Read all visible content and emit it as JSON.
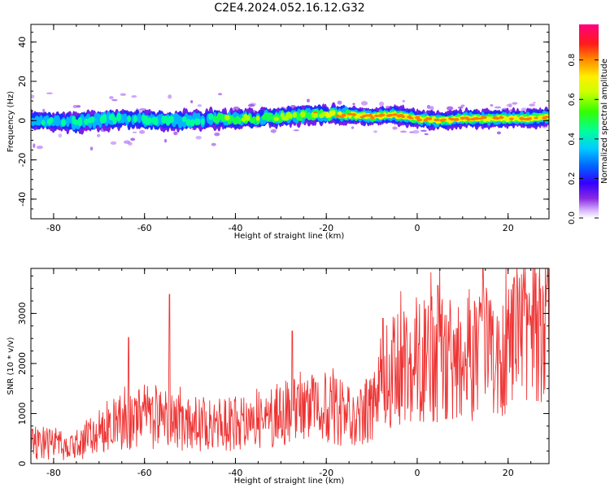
{
  "title": "C2E4.2024.052.16.12.G32",
  "colors": {
    "snr_line": "#ee3333",
    "axis": "#000000"
  },
  "chart_data": [
    {
      "type": "heatmap",
      "xlabel": "Height of straight line (km)",
      "ylabel": "Frequency (Hz)",
      "xlim": [
        -85,
        29
      ],
      "ylim": [
        -50,
        49
      ],
      "xticks": [
        -80,
        -60,
        -40,
        -20,
        0,
        20
      ],
      "xtick_labels": [
        "-80",
        "-60",
        "-40",
        "-20",
        "0",
        "20"
      ],
      "yticks": [
        -40,
        -20,
        0,
        20,
        40
      ],
      "ytick_labels": [
        "-40",
        "-20",
        "0",
        "20",
        "40"
      ],
      "colorscale": "rainbow",
      "colorbar": {
        "label": "Normalized spectral amplitude",
        "range": [
          0,
          0.98
        ],
        "ticks": [
          0.0,
          0.2,
          0.4,
          0.6,
          0.8
        ],
        "tick_labels": [
          "0.0",
          "0.2",
          "0.4",
          "0.6",
          "0.8"
        ]
      },
      "ridge": {
        "x": [
          -85,
          -80,
          -75,
          -70,
          -65,
          -60,
          -55,
          -50,
          -45,
          -40,
          -35,
          -30,
          -25,
          -20,
          -15,
          -10,
          -5,
          0,
          5,
          10,
          15,
          20,
          25,
          29
        ],
        "center_hz": [
          0,
          0,
          -1,
          0,
          1,
          0,
          0,
          0,
          1,
          1,
          1,
          2,
          3,
          3,
          3,
          2,
          3,
          1,
          0,
          1,
          1,
          1,
          1,
          2
        ],
        "peak_amplitude": [
          0.35,
          0.4,
          0.45,
          0.5,
          0.45,
          0.45,
          0.45,
          0.45,
          0.5,
          0.55,
          0.5,
          0.6,
          0.7,
          0.7,
          0.8,
          0.9,
          0.9,
          0.9,
          0.85,
          0.85,
          0.9,
          0.9,
          0.9,
          0.85
        ]
      }
    },
    {
      "type": "line",
      "xlabel": "Height of straight line (km)",
      "ylabel": "SNR (10 * v/v)",
      "xlim": [
        -85,
        29
      ],
      "ylim": [
        0,
        3900
      ],
      "xticks": [
        -80,
        -60,
        -40,
        -20,
        0,
        20
      ],
      "xtick_labels": [
        "-80",
        "-60",
        "-40",
        "-20",
        "0",
        "20"
      ],
      "yticks": [
        0,
        1000,
        2000,
        3000
      ],
      "ytick_labels": [
        "0",
        "1000",
        "2000",
        "3000"
      ],
      "trend": {
        "x": [
          -85,
          -80,
          -77,
          -75,
          -72,
          -70,
          -65,
          -60,
          -55,
          -50,
          -45,
          -40,
          -35,
          -30,
          -25,
          -20,
          -17,
          -13,
          -10,
          -7,
          -5,
          0,
          5,
          10,
          15,
          20,
          25,
          29
        ],
        "y": [
          400,
          400,
          300,
          350,
          500,
          700,
          850,
          950,
          850,
          800,
          750,
          800,
          900,
          1000,
          1050,
          1100,
          1000,
          850,
          1200,
          1750,
          1850,
          2100,
          2100,
          2100,
          2200,
          2400,
          2700,
          2800
        ]
      },
      "spikes": [
        {
          "x": -54.5,
          "y": 3380
        },
        {
          "x": -63.5,
          "y": 2520
        },
        {
          "x": 4.5,
          "y": 3560
        },
        {
          "x": 14.5,
          "y": 3900
        },
        {
          "x": 28.5,
          "y": 3550
        },
        {
          "x": -27.5,
          "y": 2650
        },
        {
          "x": -7.5,
          "y": 2900
        }
      ]
    }
  ]
}
